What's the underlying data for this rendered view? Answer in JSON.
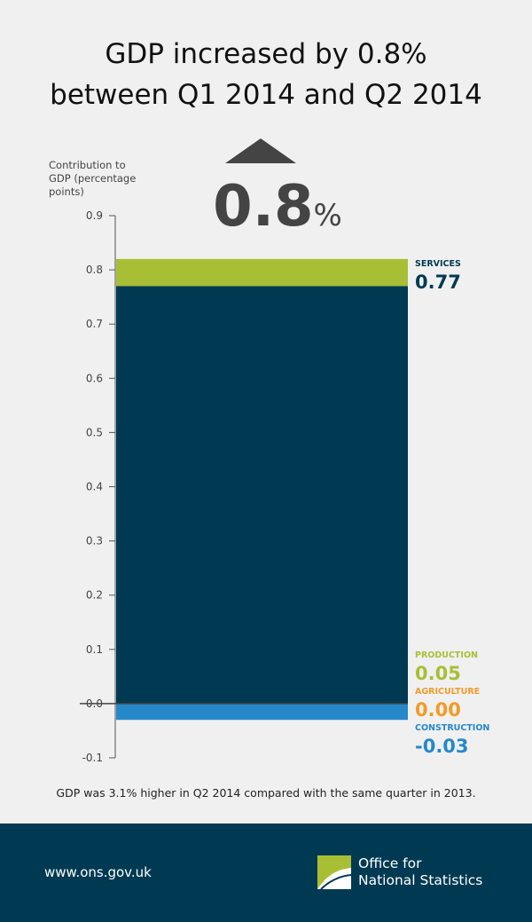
{
  "title": {
    "line1": "GDP increased by 0.8%",
    "line2": "between Q1 2014 and Q2 2014"
  },
  "headline": {
    "value": "0.8",
    "unit": "%",
    "direction": "up"
  },
  "chart_data": {
    "type": "bar",
    "stacked": true,
    "ylabel": [
      "Contribution to",
      "GDP (percentage",
      "points)"
    ],
    "ylim": [
      -0.1,
      0.9
    ],
    "yticks": [
      "0.9",
      "0.8",
      "0.7",
      "0.6",
      "0.5",
      "0.4",
      "0.3",
      "0.2",
      "0.1",
      "0.0",
      "-0.1"
    ],
    "grid": false,
    "series": [
      {
        "name": "SERVICES",
        "value": 0.77,
        "label": "0.77",
        "color": "#003a52"
      },
      {
        "name": "PRODUCTION",
        "value": 0.05,
        "label": "0.05",
        "color": "#a8bf35"
      },
      {
        "name": "AGRICULTURE",
        "value": 0.0,
        "label": "0.00",
        "color": "#f39a26"
      },
      {
        "name": "CONSTRUCTION",
        "value": -0.03,
        "label": "-0.03",
        "color": "#2688c9"
      }
    ]
  },
  "caption": "GDP was 3.1% higher in Q2 2014 compared with the same quarter in 2013.",
  "footer": {
    "url": "www.ons.gov.uk",
    "org_line1": "Office for",
    "org_line2": "National Statistics"
  }
}
